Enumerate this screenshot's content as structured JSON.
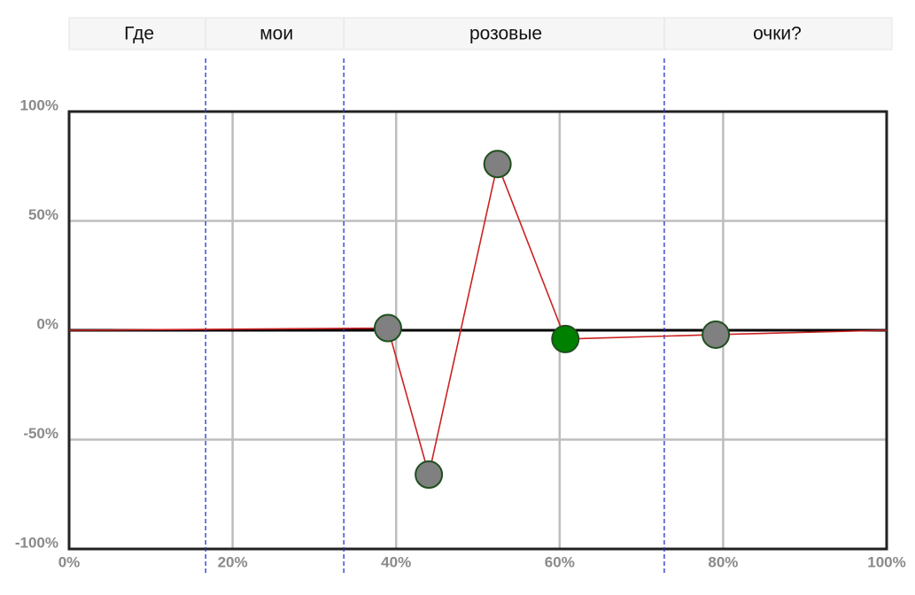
{
  "chart_data": {
    "type": "line",
    "segments": [
      {
        "label": "Где",
        "start": 0,
        "end": 16.7
      },
      {
        "label": "мои",
        "start": 16.7,
        "end": 33.6
      },
      {
        "label": "розовые",
        "start": 33.6,
        "end": 72.8
      },
      {
        "label": "очки?",
        "start": 72.8,
        "end": 100
      }
    ],
    "x": [
      0,
      39,
      44,
      52.4,
      60.7,
      79.1,
      100
    ],
    "series": [
      {
        "color": "#cc2222",
        "values": [
          0,
          1,
          -66,
          76,
          -4,
          -2,
          0
        ]
      }
    ],
    "markers": [
      false,
      true,
      true,
      true,
      true,
      true,
      false
    ],
    "marker_color": "#808080",
    "highlight": 4,
    "highlight_color": "#008000",
    "divider_color": "#2233cc",
    "xlim": [
      0,
      100
    ],
    "xticks": [
      {
        "value": 0,
        "label": "0%"
      },
      {
        "value": 20,
        "label": "20%"
      },
      {
        "value": 40,
        "label": "40%"
      },
      {
        "value": 60,
        "label": "60%"
      },
      {
        "value": 80,
        "label": "80%"
      },
      {
        "value": 100,
        "label": "100%"
      }
    ],
    "ylim": [
      -100,
      100
    ],
    "yticks": [
      {
        "value": -100,
        "label": "-100%"
      },
      {
        "value": -50,
        "label": "-50%"
      },
      {
        "value": 0,
        "label": "0%"
      },
      {
        "value": 50,
        "label": "50%"
      },
      {
        "value": 100,
        "label": "100%"
      }
    ],
    "grid": true
  }
}
